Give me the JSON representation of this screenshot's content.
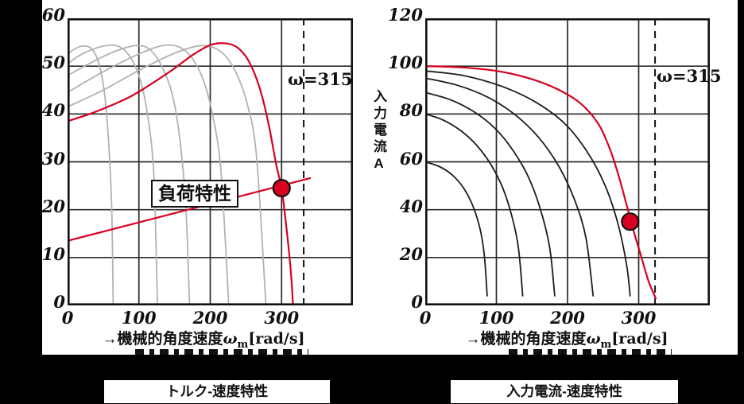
{
  "colors": {
    "accent_red": "#d80020",
    "gray_curve": "#b2b2b2",
    "black_curve": "#1c1c1c",
    "grid": "#2b2b2b",
    "frame": "#000000",
    "panel_bg": "#ffffff"
  },
  "chart_data": [
    {
      "type": "line",
      "title": "トルク-速度特性",
      "xlabel": "→機械的角度速度ωm[rad/s]",
      "xlabel_prefix": "→機械的角度速度",
      "xlabel_omega": "ω",
      "xlabel_sub": "m",
      "xlabel_suffix": "[rad/s]",
      "xlim": [
        0,
        400
      ],
      "ylim": [
        0,
        60
      ],
      "xticks": [
        0,
        100,
        200,
        300
      ],
      "yticks": [
        0,
        10,
        20,
        30,
        40,
        50,
        60
      ],
      "grid": true,
      "legend": "none",
      "omega_label": "ω=315",
      "omega_line_x": 331,
      "annotation": "負荷特性",
      "operating_point": [
        300,
        24.5
      ],
      "series": [
        {
          "name": "torque-curve-f1",
          "color_key": "gray_curve",
          "width": 1.8,
          "points": [
            [
              0,
              52.5
            ],
            [
              10,
              53.6
            ],
            [
              22,
              54.2
            ],
            [
              34,
              53.6
            ],
            [
              44,
              50.5
            ],
            [
              52,
              44
            ],
            [
              58,
              33
            ],
            [
              62,
              20
            ],
            [
              64,
              0
            ]
          ]
        },
        {
          "name": "torque-curve-f2",
          "color_key": "gray_curve",
          "width": 1.8,
          "points": [
            [
              0,
              50.5
            ],
            [
              20,
              52.5
            ],
            [
              45,
              54
            ],
            [
              68,
              54.3
            ],
            [
              85,
              52.5
            ],
            [
              100,
              48
            ],
            [
              112,
              40
            ],
            [
              121,
              27
            ],
            [
              126,
              0
            ]
          ]
        },
        {
          "name": "torque-curve-f3",
          "color_key": "gray_curve",
          "width": 1.8,
          "points": [
            [
              0,
              48
            ],
            [
              30,
              50.5
            ],
            [
              65,
              53
            ],
            [
              95,
              54.3
            ],
            [
              115,
              53.5
            ],
            [
              132,
              50
            ],
            [
              147,
              44
            ],
            [
              158,
              34
            ],
            [
              166,
              20
            ],
            [
              171,
              0
            ]
          ]
        },
        {
          "name": "torque-curve-f4",
          "color_key": "gray_curve",
          "width": 1.8,
          "points": [
            [
              0,
              44.5
            ],
            [
              40,
              48
            ],
            [
              85,
              51.5
            ],
            [
              125,
              54
            ],
            [
              150,
              54.3
            ],
            [
              170,
              52.5
            ],
            [
              188,
              48
            ],
            [
              203,
              40
            ],
            [
              215,
              28
            ],
            [
              226,
              0
            ]
          ]
        },
        {
          "name": "torque-curve-f5",
          "color_key": "gray_curve",
          "width": 1.8,
          "points": [
            [
              0,
              41.5
            ],
            [
              50,
              45
            ],
            [
              105,
              49.5
            ],
            [
              155,
              53
            ],
            [
              190,
              54.3
            ],
            [
              215,
              53
            ],
            [
              235,
              49
            ],
            [
              252,
              42
            ],
            [
              265,
              31
            ],
            [
              278,
              0
            ]
          ]
        },
        {
          "name": "torque-curve-omega315",
          "color_key": "accent_red",
          "width": 2.2,
          "points": [
            [
              0,
              38.5
            ],
            [
              40,
              40.5
            ],
            [
              90,
              43.8
            ],
            [
              140,
              48.5
            ],
            [
              175,
              52.3
            ],
            [
              200,
              54.4
            ],
            [
              218,
              54.8
            ],
            [
              235,
              54.2
            ],
            [
              250,
              52
            ],
            [
              262,
              48.5
            ],
            [
              273,
              43.5
            ],
            [
              283,
              37
            ],
            [
              293,
              29
            ],
            [
              300,
              24.5
            ],
            [
              307,
              16
            ],
            [
              313,
              7
            ],
            [
              316,
              0
            ]
          ]
        },
        {
          "name": "load-line",
          "color_key": "accent_red",
          "width": 2.2,
          "straight": true,
          "points": [
            [
              0,
              13.5
            ],
            [
              340,
              26.6
            ]
          ]
        }
      ]
    },
    {
      "type": "line",
      "title": "入力電流-速度特性",
      "xlabel": "→機械的角度速度ωm[rad/s]",
      "xlabel_prefix": "→機械的角度速度",
      "xlabel_omega": "ω",
      "xlabel_sub": "m",
      "xlabel_suffix": "[rad/s]",
      "ylabel": "入力電流A",
      "xlim": [
        0,
        400
      ],
      "ylim": [
        0,
        120
      ],
      "xticks": [
        0,
        100,
        200,
        300
      ],
      "yticks": [
        0,
        20,
        40,
        60,
        80,
        100,
        120
      ],
      "grid": true,
      "legend": "none",
      "omega_label": "ω=315",
      "omega_line_x": 323,
      "operating_point": [
        288,
        35
      ],
      "series": [
        {
          "name": "current-curve-f1",
          "color_key": "black_curve",
          "width": 1.8,
          "points": [
            [
              0,
              60
            ],
            [
              20,
              58
            ],
            [
              38,
              54.5
            ],
            [
              54,
              49
            ],
            [
              67,
              41.5
            ],
            [
              77,
              32
            ],
            [
              83,
              21
            ],
            [
              87,
              4
            ]
          ]
        },
        {
          "name": "current-curve-f2",
          "color_key": "black_curve",
          "width": 1.8,
          "points": [
            [
              0,
              80
            ],
            [
              25,
              77.5
            ],
            [
              50,
              73
            ],
            [
              72,
              67
            ],
            [
              92,
              59
            ],
            [
              109,
              49
            ],
            [
              122,
              37
            ],
            [
              131,
              24
            ],
            [
              137,
              4
            ]
          ]
        },
        {
          "name": "current-curve-f3",
          "color_key": "black_curve",
          "width": 1.8,
          "points": [
            [
              0,
              89
            ],
            [
              35,
              86
            ],
            [
              68,
              81
            ],
            [
              98,
              74
            ],
            [
              124,
              64.5
            ],
            [
              146,
              53
            ],
            [
              163,
              39
            ],
            [
              175,
              24
            ],
            [
              182,
              4
            ]
          ]
        },
        {
          "name": "current-curve-f4",
          "color_key": "black_curve",
          "width": 1.8,
          "points": [
            [
              0,
              95
            ],
            [
              45,
              92
            ],
            [
              88,
              87
            ],
            [
              127,
              79.5
            ],
            [
              160,
              70
            ],
            [
              188,
              58
            ],
            [
              210,
              44
            ],
            [
              226,
              28
            ],
            [
              236,
              4
            ]
          ]
        },
        {
          "name": "current-curve-f5",
          "color_key": "black_curve",
          "width": 1.8,
          "points": [
            [
              0,
              98
            ],
            [
              55,
              96
            ],
            [
              108,
              91.5
            ],
            [
              155,
              85
            ],
            [
              196,
              76
            ],
            [
              228,
              64
            ],
            [
              253,
              50
            ],
            [
              271,
              34
            ],
            [
              283,
              17
            ],
            [
              288,
              4
            ]
          ]
        },
        {
          "name": "current-curve-omega315",
          "color_key": "accent_red",
          "width": 2.2,
          "points": [
            [
              0,
              100
            ],
            [
              50,
              99.5
            ],
            [
              100,
              98
            ],
            [
              145,
              95
            ],
            [
              185,
              90.5
            ],
            [
              218,
              84.5
            ],
            [
              243,
              76
            ],
            [
              260,
              65
            ],
            [
              272,
              54
            ],
            [
              283,
              42
            ],
            [
              293,
              31
            ],
            [
              303,
              21
            ],
            [
              314,
              10
            ],
            [
              324,
              3
            ]
          ]
        }
      ]
    }
  ]
}
